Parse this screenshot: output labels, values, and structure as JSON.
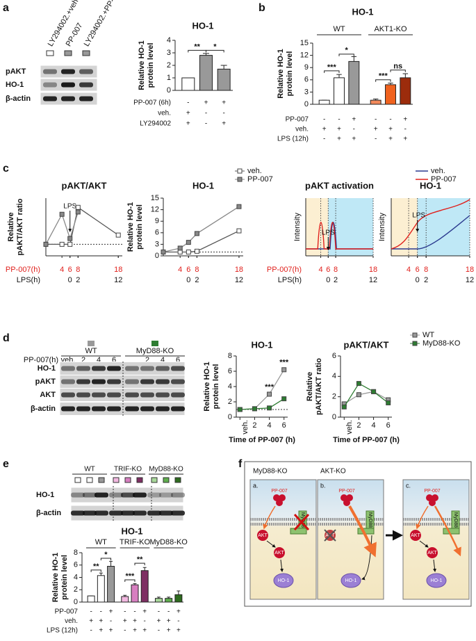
{
  "panel_labels": [
    "a",
    "b",
    "c",
    "d",
    "e",
    "f"
  ],
  "blots": [
    {
      "lanes": [
        "LY294002.+veh",
        "PP-007",
        "LY294002.+PP-007"
      ],
      "lane_colors": [
        "#ffffff",
        "#999999",
        "#999999"
      ],
      "rows": [
        "pAKT",
        "HO-1",
        "β-actin"
      ]
    },
    {
      "groups": [
        "WT",
        "MyD88-KO"
      ],
      "group_colors": [
        "#999999",
        "#2e7d32"
      ],
      "lane_label": "PP-007(h)",
      "lanes": [
        [
          "veh.",
          "2",
          "4",
          "6"
        ],
        [
          "2",
          "4",
          "6"
        ]
      ],
      "rows": [
        "HO-1",
        "pAKT",
        "AKT",
        "β-actin"
      ]
    },
    {
      "groups": [
        "WT",
        "TRIF-KO",
        "MyD88-KO"
      ],
      "lane_colors": [
        "#ffffff",
        "#ffffff",
        "#999999",
        "#f2b8e0",
        "#d77fc0",
        "#7e2f63",
        "#a8d89a",
        "#5fae4e",
        "#2e6b1f"
      ],
      "rows": [
        "HO-1",
        "β-actin"
      ]
    }
  ],
  "chart_data": [
    {
      "type": "bar",
      "title": "HO-1",
      "ylabel": [
        "Relative HO-1",
        "protein level"
      ],
      "categories": [
        null,
        null,
        null
      ],
      "values": [
        1,
        2.8,
        1.7
      ],
      "errors": [
        0,
        0.15,
        0.3
      ],
      "colors": [
        "#ffffff",
        "#999999",
        "#999999"
      ],
      "ylim": [
        0,
        4
      ],
      "yticks": [
        0,
        1,
        2,
        3,
        4
      ],
      "significance": [
        "**",
        "*"
      ],
      "conditions": [
        {
          "name": "PP-007 (6h)",
          "marks": [
            "-",
            "+",
            "+"
          ]
        },
        {
          "name": "veh.",
          "marks": [
            "+",
            "-",
            "-"
          ]
        },
        {
          "name": "LY294002",
          "marks": [
            "+",
            "-",
            "+"
          ]
        }
      ]
    },
    {
      "type": "bar",
      "title": "HO-1",
      "ylabel": [
        "Relative HO-1",
        "protein level"
      ],
      "groups": [
        "WT",
        "AKT1-KO"
      ],
      "categories": [
        null,
        null,
        null,
        null,
        null,
        null
      ],
      "values": [
        1,
        6.5,
        10.5,
        1,
        4.8,
        6.5
      ],
      "errors": [
        0,
        0.8,
        1.2,
        0.3,
        0.4,
        1.0
      ],
      "colors": [
        "#ffffff",
        "#ffffff",
        "#999999",
        "#f28a5c",
        "#f0621e",
        "#9c2c0c"
      ],
      "ylim": [
        0,
        15
      ],
      "yticks": [
        0,
        3,
        6,
        9,
        12,
        15
      ],
      "significance": [
        "***",
        "*",
        "***",
        "ns"
      ],
      "conditions": [
        {
          "name": "PP-007",
          "marks": [
            "-",
            "-",
            "+",
            "-",
            "-",
            "+"
          ]
        },
        {
          "name": "veh.",
          "marks": [
            "+",
            "+",
            "-",
            "+",
            "+",
            "-"
          ]
        },
        {
          "name": "LPS (12h)",
          "marks": [
            "-",
            "+",
            "+",
            "-",
            "+",
            "+"
          ]
        }
      ]
    },
    {
      "type": "line",
      "title": "pAKT/AKT",
      "ylabel": [
        "Relative",
        "pAKT/AKT ratio"
      ],
      "annotation": "LPS",
      "x": [
        0,
        4,
        6,
        8,
        18
      ],
      "xlim": [
        0,
        19
      ],
      "ylim": [
        0,
        5
      ],
      "reference_line": 1,
      "legend": "top",
      "series": [
        {
          "name": "veh.",
          "color": "#ffffff",
          "values": [
            1,
            1,
            1,
            4.2,
            1.8
          ]
        },
        {
          "name": "PP-007",
          "color": "#888888",
          "values": [
            1,
            3.6,
            1.5,
            3.8,
            null
          ]
        }
      ],
      "xrows": [
        {
          "name": "PP-007(h)",
          "color": "#e0201c",
          "ticks": [
            4,
            6,
            8,
            18
          ]
        },
        {
          "name": "LPS(h)",
          "ticks": [
            {
              "value": 6,
              "label": "0"
            },
            {
              "value": 8,
              "label": "2"
            },
            {
              "value": 18,
              "label": "12"
            }
          ]
        }
      ]
    },
    {
      "type": "line",
      "title": "HO-1",
      "ylabel": [
        "Relative HO-1",
        "protein level"
      ],
      "x": [
        0,
        4,
        6,
        8,
        18
      ],
      "xlim": [
        0,
        19
      ],
      "ylim": [
        0,
        15
      ],
      "yticks": [
        0,
        3,
        6,
        9,
        12,
        15
      ],
      "reference_line": 1,
      "series": [
        {
          "color": "#ffffff",
          "values": [
            1,
            1,
            1,
            1.2,
            6.5
          ]
        },
        {
          "color": "#888888",
          "values": [
            1,
            2,
            3.5,
            5.8,
            12.8
          ]
        }
      ],
      "xrows": [
        {
          "color": "#e0201c",
          "ticks": [
            4,
            6,
            8,
            18
          ]
        },
        {
          "ticks": [
            {
              "value": 6,
              "label": "0"
            },
            {
              "value": 8,
              "label": "2"
            },
            {
              "value": 18,
              "label": "12"
            }
          ]
        }
      ]
    },
    {
      "type": "line",
      "title": "HO-1",
      "ylabel": [
        "Relative HO-1",
        "protein level"
      ],
      "xlabel": "Time of PP-007 (h)",
      "x": [
        0,
        2,
        4,
        6
      ],
      "xlim": [
        -0.5,
        6.5
      ],
      "xticks": [
        {
          "value": 0,
          "label": "veh."
        },
        2,
        4,
        6
      ],
      "ylim": [
        0,
        8
      ],
      "yticks": [
        0,
        2,
        4,
        6,
        8
      ],
      "reference_line": 1,
      "series": [
        {
          "color": "#999999",
          "values": [
            1,
            1.1,
            3,
            6.2
          ]
        },
        {
          "color": "#2e7d32",
          "values": [
            1,
            1.1,
            1.2,
            2.4
          ]
        }
      ],
      "significance": [
        "***",
        "***"
      ]
    },
    {
      "type": "line",
      "title": "pAKT/AKT",
      "ylabel": [
        "Relative",
        "pAKT/AKT ratio"
      ],
      "xlabel": "Time of PP-007 (h)",
      "legend": "top-right",
      "x": [
        0,
        2,
        4,
        6
      ],
      "xlim": [
        -0.5,
        6.5
      ],
      "xticks": [
        {
          "value": 0,
          "label": "veh."
        },
        2,
        4,
        6
      ],
      "ylim": [
        0,
        6
      ],
      "yticks": [
        0,
        2,
        4,
        6
      ],
      "series": [
        {
          "name": "WT",
          "color": "#999999",
          "values": [
            1.3,
            2.2,
            2.5,
            1.7
          ]
        },
        {
          "name": "MyD88-KO",
          "color": "#2e7d32",
          "values": [
            1,
            3.3,
            2.5,
            1.4
          ]
        }
      ]
    },
    {
      "type": "bar",
      "title": "HO-1",
      "ylabel": [
        "Relative HO-1",
        "protein level"
      ],
      "groups": [
        "WT",
        "TRIF-KO",
        "MyD88-KO"
      ],
      "categories": [
        null,
        null,
        null,
        null,
        null,
        null,
        null,
        null,
        null
      ],
      "values": [
        1,
        4.3,
        5.8,
        0.9,
        2.8,
        5.1,
        0.6,
        0.6,
        1.2
      ],
      "errors": [
        0,
        0.4,
        0.8,
        0.2,
        0.2,
        0.5,
        0.2,
        0.2,
        0.6
      ],
      "colors": [
        "#ffffff",
        "#ffffff",
        "#999999",
        "#f2b8e0",
        "#d77fc0",
        "#7e2f63",
        "#a8d89a",
        "#5fae4e",
        "#2e6b1f"
      ],
      "ylim": [
        0,
        8
      ],
      "yticks": [
        0,
        2,
        4,
        6,
        8
      ],
      "significance": [
        "**",
        "*",
        "***",
        "**"
      ],
      "conditions": [
        {
          "name": "PP-007",
          "marks": [
            "-",
            "-",
            "+",
            "-",
            "-",
            "+",
            "-",
            "-",
            "+"
          ]
        },
        {
          "name": "veh.",
          "marks": [
            "+",
            "+",
            "-",
            "+",
            "+",
            "-",
            "+",
            "+",
            "-"
          ]
        },
        {
          "name": "LPS (12h)",
          "marks": [
            "-",
            "+",
            "+",
            "-",
            "+",
            "+",
            "-",
            "+",
            "+"
          ]
        }
      ]
    }
  ],
  "illustrations": [
    {
      "title": "pAKT activation",
      "ylabel": "Intensity",
      "annotation": "LPS",
      "xlim": [
        0,
        18
      ],
      "series": [
        {
          "name": "veh.",
          "color": "#2b3a8f"
        },
        {
          "name": "PP-007",
          "color": "#e0201c"
        }
      ],
      "xrows": [
        {
          "name": "PP-007(h)",
          "color": "#e0201c",
          "ticks": [
            4,
            6,
            8,
            18
          ]
        },
        {
          "name": "LPS(h)",
          "ticks": [
            {
              "value": 6,
              "label": "0"
            },
            {
              "value": 8,
              "label": "2"
            },
            {
              "value": 18,
              "label": "12"
            }
          ]
        }
      ]
    },
    {
      "title": "HO-1",
      "ylabel": "Intensity",
      "annotation": "LPS",
      "xlim": [
        0,
        18
      ],
      "xrows": [
        {
          "color": "#e0201c",
          "ticks": [
            4,
            6,
            8,
            18
          ]
        },
        {
          "ticks": [
            {
              "value": 6,
              "label": "0"
            },
            {
              "value": 8,
              "label": "2"
            },
            {
              "value": 18,
              "label": "12"
            }
          ]
        }
      ]
    }
  ],
  "schematic": {
    "panels": [
      {
        "label": "a.",
        "title": "MyD88-KO"
      },
      {
        "label": "b.",
        "title": "AKT-KO"
      },
      {
        "label": "c."
      }
    ],
    "drug": "PP-007",
    "akt": "AKT",
    "myd88": "MyD88",
    "ho1": "HO-1"
  }
}
